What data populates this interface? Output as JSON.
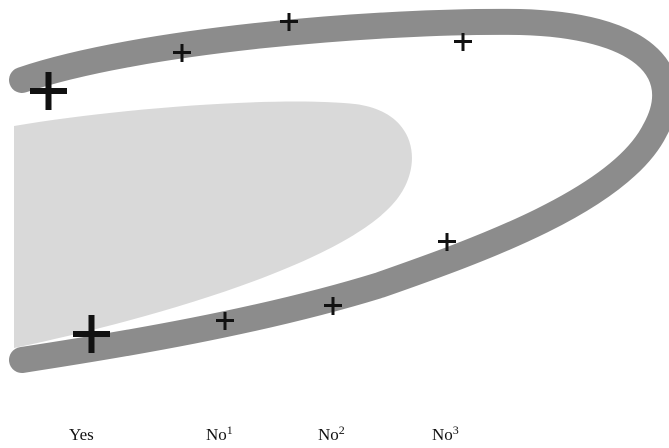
{
  "colors": {
    "band": "#8c8c8c",
    "region": "#d9d9d9",
    "marker": "#111111",
    "background": "#ffffff"
  },
  "markers": {
    "large_symbol": "+",
    "small_symbol": "+"
  },
  "labels": [
    {
      "base": "Yes",
      "superscript": ""
    },
    {
      "base": "No",
      "superscript": "1"
    },
    {
      "base": "No",
      "superscript": "2"
    },
    {
      "base": "No",
      "superscript": "3"
    }
  ]
}
